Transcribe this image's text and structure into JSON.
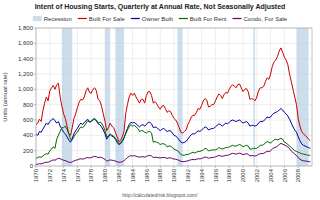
{
  "chart_data": {
    "type": "line",
    "title": "Intent of Housing Starts, Quarterly at Annual Rate, Not Seasonally Adjusted",
    "y_label": "Units (annual rate)",
    "annotations": [
      {
        "text": "http://calculatedrisk.blogspot.com/"
      }
    ],
    "grid": true,
    "legend": "top",
    "xlim": [
      1970,
      2010
    ],
    "xticks": [
      1970,
      1972,
      1974,
      1976,
      1978,
      1980,
      1982,
      1984,
      1986,
      1988,
      1990,
      1992,
      1994,
      1996,
      1998,
      2000,
      2002,
      2004,
      2006,
      2008
    ],
    "ylim": [
      0,
      1800
    ],
    "yticks": [
      0,
      200,
      400,
      600,
      800,
      {
        "value": 1000,
        "label": "1,000"
      },
      {
        "value": 1200,
        "label": "1,200"
      },
      {
        "value": 1400,
        "label": "1,400"
      },
      {
        "value": 1600,
        "label": "1,600"
      },
      {
        "value": 1800,
        "label": "1,800"
      }
    ],
    "recessions": {
      "name": "Recession",
      "color": "#b8cfe4",
      "spans": [
        [
          1973.75,
          1975.25
        ],
        [
          1980.0,
          1980.75
        ],
        [
          1981.5,
          1982.75
        ],
        [
          1990.5,
          1991.25
        ],
        [
          2001.5,
          2001.75
        ],
        [
          2007.75,
          2009.5
        ]
      ]
    },
    "x": [
      1970.0,
      1970.25,
      1970.5,
      1970.75,
      1971.0,
      1971.25,
      1971.5,
      1971.75,
      1972.0,
      1972.25,
      1972.5,
      1972.75,
      1973.0,
      1973.25,
      1973.5,
      1973.75,
      1974.0,
      1974.25,
      1974.5,
      1974.75,
      1975.0,
      1975.25,
      1975.5,
      1975.75,
      1976.0,
      1976.25,
      1976.5,
      1976.75,
      1977.0,
      1977.25,
      1977.5,
      1977.75,
      1978.0,
      1978.25,
      1978.5,
      1978.75,
      1979.0,
      1979.25,
      1979.5,
      1979.75,
      1980.0,
      1980.25,
      1980.5,
      1980.75,
      1981.0,
      1981.25,
      1981.5,
      1981.75,
      1982.0,
      1982.25,
      1982.5,
      1982.75,
      1983.0,
      1983.25,
      1983.5,
      1983.75,
      1984.0,
      1984.25,
      1984.5,
      1984.75,
      1985.0,
      1985.25,
      1985.5,
      1985.75,
      1986.0,
      1986.25,
      1986.5,
      1986.75,
      1987.0,
      1987.25,
      1987.5,
      1987.75,
      1988.0,
      1988.25,
      1988.5,
      1988.75,
      1989.0,
      1989.25,
      1989.5,
      1989.75,
      1990.0,
      1990.25,
      1990.5,
      1990.75,
      1991.0,
      1991.25,
      1991.5,
      1991.75,
      1992.0,
      1992.25,
      1992.5,
      1992.75,
      1993.0,
      1993.25,
      1993.5,
      1993.75,
      1994.0,
      1994.25,
      1994.5,
      1994.75,
      1995.0,
      1995.25,
      1995.5,
      1995.75,
      1996.0,
      1996.25,
      1996.5,
      1996.75,
      1997.0,
      1997.25,
      1997.5,
      1997.75,
      1998.0,
      1998.25,
      1998.5,
      1998.75,
      1999.0,
      1999.25,
      1999.5,
      1999.75,
      2000.0,
      2000.25,
      2000.5,
      2000.75,
      2001.0,
      2001.25,
      2001.5,
      2001.75,
      2002.0,
      2002.25,
      2002.5,
      2002.75,
      2003.0,
      2003.25,
      2003.5,
      2003.75,
      2004.0,
      2004.25,
      2004.5,
      2004.75,
      2005.0,
      2005.25,
      2005.5,
      2005.75,
      2006.0,
      2006.25,
      2006.5,
      2006.75,
      2007.0,
      2007.25,
      2007.5,
      2007.75,
      2008.0,
      2008.25,
      2008.5,
      2008.75,
      2009.0,
      2009.25,
      2009.5,
      2009.75
    ],
    "series": [
      {
        "name": "Built For Sale",
        "color": "#cc0000",
        "values": [
          540,
          560,
          610,
          580,
          720,
          820,
          900,
          850,
          980,
          1020,
          1050,
          1000,
          1060,
          1080,
          900,
          780,
          680,
          620,
          520,
          420,
          400,
          500,
          620,
          680,
          760,
          830,
          870,
          860,
          900,
          980,
          1020,
          960,
          950,
          1000,
          1020,
          980,
          870,
          850,
          780,
          680,
          580,
          460,
          500,
          560,
          520,
          500,
          440,
          380,
          320,
          330,
          380,
          450,
          680,
          800,
          900,
          950,
          920,
          950,
          900,
          860,
          820,
          870,
          870,
          820,
          920,
          970,
          970,
          920,
          820,
          840,
          810,
          770,
          740,
          780,
          790,
          750,
          700,
          720,
          710,
          660,
          620,
          600,
          560,
          500,
          440,
          430,
          450,
          470,
          540,
          580,
          640,
          660,
          660,
          700,
          750,
          740,
          790,
          850,
          880,
          860,
          770,
          780,
          800,
          800,
          850,
          900,
          940,
          920,
          880,
          930,
          960,
          950,
          1000,
          1040,
          1060,
          1040,
          1020,
          1060,
          1070,
          1020,
          970,
          1000,
          1010,
          970,
          870,
          880,
          870,
          850,
          900,
          980,
          1020,
          1020,
          1040,
          1100,
          1150,
          1130,
          1200,
          1300,
          1360,
          1380,
          1430,
          1500,
          1540,
          1480,
          1420,
          1380,
          1320,
          1200,
          1100,
          1000,
          900,
          800,
          620,
          520,
          450,
          420,
          400,
          380,
          350,
          330
        ]
      },
      {
        "name": "Owner Built",
        "color": "#000099",
        "values": [
          420,
          400,
          450,
          440,
          480,
          520,
          560,
          540,
          580,
          600,
          620,
          590,
          560,
          580,
          520,
          480,
          440,
          420,
          380,
          340,
          310,
          360,
          420,
          460,
          490,
          530,
          560,
          540,
          570,
          590,
          610,
          580,
          580,
          600,
          610,
          590,
          550,
          540,
          510,
          470,
          420,
          350,
          380,
          410,
          390,
          380,
          350,
          310,
          280,
          290,
          320,
          360,
          430,
          490,
          540,
          570,
          560,
          570,
          550,
          530,
          510,
          530,
          540,
          520,
          540,
          570,
          570,
          550,
          500,
          510,
          500,
          480,
          460,
          480,
          490,
          470,
          450,
          460,
          460,
          430,
          400,
          390,
          370,
          340,
          310,
          300,
          310,
          320,
          350,
          380,
          410,
          420,
          420,
          440,
          460,
          450,
          470,
          490,
          510,
          500,
          470,
          480,
          490,
          490,
          510,
          530,
          550,
          540,
          520,
          540,
          560,
          550,
          570,
          590,
          600,
          590,
          580,
          590,
          600,
          580,
          560,
          570,
          580,
          560,
          520,
          530,
          530,
          520,
          530,
          560,
          580,
          580,
          590,
          610,
          640,
          630,
          640,
          670,
          690,
          700,
          710,
          730,
          750,
          730,
          700,
          680,
          650,
          610,
          560,
          510,
          470,
          440,
          380,
          330,
          290,
          270,
          260,
          250,
          240,
          230
        ]
      },
      {
        "name": "Built For Rent",
        "color": "#006600",
        "values": [
          100,
          110,
          120,
          115,
          130,
          150,
          160,
          155,
          200,
          220,
          250,
          230,
          350,
          400,
          450,
          500,
          500,
          520,
          480,
          420,
          350,
          340,
          380,
          420,
          440,
          480,
          510,
          500,
          520,
          560,
          590,
          570,
          580,
          610,
          620,
          600,
          560,
          570,
          560,
          520,
          460,
          380,
          390,
          420,
          400,
          390,
          360,
          330,
          290,
          300,
          330,
          370,
          420,
          470,
          510,
          540,
          520,
          530,
          510,
          490,
          450,
          460,
          460,
          440,
          430,
          450,
          450,
          430,
          310,
          320,
          310,
          300,
          280,
          290,
          290,
          280,
          250,
          260,
          260,
          240,
          220,
          210,
          200,
          180,
          150,
          140,
          140,
          150,
          150,
          160,
          170,
          180,
          170,
          180,
          190,
          190,
          200,
          210,
          230,
          220,
          200,
          200,
          210,
          210,
          210,
          220,
          240,
          230,
          220,
          230,
          240,
          240,
          250,
          260,
          270,
          260,
          260,
          270,
          280,
          270,
          250,
          260,
          270,
          260,
          220,
          220,
          230,
          230,
          230,
          250,
          270,
          270,
          280,
          300,
          320,
          310,
          300,
          320,
          340,
          350,
          340,
          350,
          360,
          350,
          310,
          300,
          280,
          260,
          240,
          220,
          200,
          190,
          180,
          170,
          160,
          155,
          150,
          145,
          140,
          138
        ]
      },
      {
        "name": "Condo, For Sale",
        "color": "#660066",
        "values": [
          20,
          25,
          30,
          28,
          35,
          45,
          50,
          48,
          60,
          70,
          80,
          75,
          90,
          100,
          95,
          85,
          75,
          70,
          60,
          50,
          45,
          55,
          65,
          75,
          80,
          90,
          95,
          90,
          95,
          105,
          110,
          105,
          110,
          120,
          125,
          120,
          110,
          115,
          110,
          100,
          85,
          65,
          70,
          80,
          75,
          72,
          65,
          55,
          48,
          50,
          58,
          68,
          90,
          110,
          125,
          135,
          130,
          135,
          128,
          120,
          115,
          120,
          122,
          115,
          125,
          135,
          138,
          130,
          110,
          115,
          112,
          108,
          105,
          110,
          112,
          108,
          100,
          105,
          106,
          98,
          90,
          88,
          82,
          72,
          60,
          57,
          58,
          62,
          68,
          75,
          82,
          85,
          82,
          88,
          95,
          93,
          98,
          108,
          118,
          112,
          102,
          106,
          112,
          112,
          120,
          128,
          138,
          132,
          125,
          133,
          140,
          138,
          148,
          158,
          165,
          160,
          155,
          162,
          168,
          160,
          148,
          155,
          160,
          152,
          132,
          135,
          135,
          130,
          138,
          152,
          162,
          162,
          165,
          178,
          192,
          188,
          200,
          222,
          238,
          245,
          260,
          280,
          295,
          285,
          275,
          262,
          248,
          225,
          195,
          175,
          155,
          140,
          108,
          90,
          75,
          68,
          65,
          62,
          58,
          55
        ]
      }
    ]
  }
}
